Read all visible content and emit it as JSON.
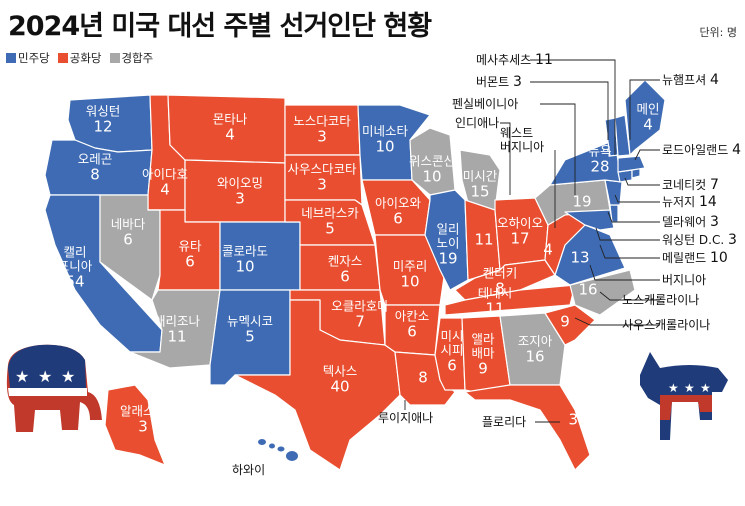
{
  "title": "2024년 미국 대선 주별 선거인단 현황",
  "unit": "단위: 명",
  "legend": [
    {
      "label": "민주당",
      "color": "#3e6bb3"
    },
    {
      "label": "공화당",
      "color": "#e84e2f"
    },
    {
      "label": "경합주",
      "color": "#a8a8a8"
    }
  ],
  "colors": {
    "dem": "#3e6bb3",
    "rep": "#e84e2f",
    "swing": "#a8a8a8"
  },
  "states": [
    {
      "id": "wa",
      "line1": "워싱턴",
      "num": "12",
      "party": "dem"
    },
    {
      "id": "or",
      "line1": "오레곤",
      "num": "8",
      "party": "dem"
    },
    {
      "id": "ca",
      "line1": "캘리",
      "line2": "포니아",
      "num": "54",
      "party": "dem"
    },
    {
      "id": "id",
      "line1": "아이다호",
      "num": "4",
      "party": "rep"
    },
    {
      "id": "nv",
      "line1": "네바다",
      "num": "6",
      "party": "swing"
    },
    {
      "id": "mt",
      "line1": "몬타나",
      "num": "4",
      "party": "rep"
    },
    {
      "id": "wy",
      "line1": "와이오밍",
      "num": "3",
      "party": "rep"
    },
    {
      "id": "ut",
      "line1": "유타",
      "num": "6",
      "party": "rep"
    },
    {
      "id": "az",
      "line1": "애리조나",
      "num": "11",
      "party": "swing"
    },
    {
      "id": "co",
      "line1": "콜로라도",
      "num": "10",
      "party": "dem"
    },
    {
      "id": "nm",
      "line1": "뉴멕시코",
      "num": "5",
      "party": "dem"
    },
    {
      "id": "nd",
      "line1": "노스다코타",
      "num": "3",
      "party": "rep"
    },
    {
      "id": "sd",
      "line1": "사우스다코타",
      "num": "3",
      "party": "rep"
    },
    {
      "id": "ne",
      "line1": "네브라스카",
      "num": "5",
      "party": "rep"
    },
    {
      "id": "ks",
      "line1": "켄자스",
      "num": "6",
      "party": "rep"
    },
    {
      "id": "ok",
      "line1": "오클라호마",
      "num": "7",
      "party": "rep"
    },
    {
      "id": "tx",
      "line1": "텍사스",
      "num": "40",
      "party": "rep"
    },
    {
      "id": "mn",
      "line1": "미네소타",
      "num": "10",
      "party": "dem"
    },
    {
      "id": "ia",
      "line1": "아이오와",
      "num": "6",
      "party": "rep"
    },
    {
      "id": "mo",
      "line1": "미주리",
      "num": "10",
      "party": "rep"
    },
    {
      "id": "ar",
      "line1": "아칸소",
      "num": "6",
      "party": "rep"
    },
    {
      "id": "la",
      "line1": "",
      "num": "8",
      "party": "rep"
    },
    {
      "id": "wi",
      "line1": "위스콘신",
      "num": "10",
      "party": "swing"
    },
    {
      "id": "il",
      "line1": "일리",
      "line2": "노이",
      "num": "19",
      "party": "dem"
    },
    {
      "id": "mi",
      "line1": "미시간",
      "num": "15",
      "party": "swing"
    },
    {
      "id": "in",
      "line1": "",
      "num": "11",
      "party": "rep"
    },
    {
      "id": "oh",
      "line1": "오하이오",
      "num": "17",
      "party": "rep"
    },
    {
      "id": "ky",
      "line1": "켄터키",
      "num": "8",
      "party": "rep"
    },
    {
      "id": "tn",
      "line1": "테네시",
      "num": "11",
      "party": "rep"
    },
    {
      "id": "ms",
      "line1": "미시",
      "line2": "시피",
      "num": "6",
      "party": "rep"
    },
    {
      "id": "al",
      "line1": "앨라",
      "line2": "배마",
      "num": "9",
      "party": "rep"
    },
    {
      "id": "ga",
      "line1": "조지아",
      "num": "16",
      "party": "swing"
    },
    {
      "id": "fl",
      "line1": "",
      "num": "30",
      "party": "rep"
    },
    {
      "id": "sc",
      "line1": "",
      "num": "9",
      "party": "rep"
    },
    {
      "id": "nc",
      "line1": "",
      "num": "16",
      "party": "swing"
    },
    {
      "id": "va",
      "line1": "",
      "num": "13",
      "party": "dem"
    },
    {
      "id": "wv",
      "line1": "",
      "num": "4",
      "party": "rep"
    },
    {
      "id": "pa",
      "line1": "",
      "num": "19",
      "party": "swing"
    },
    {
      "id": "ny",
      "line1": "뉴욕",
      "num": "28",
      "party": "dem"
    },
    {
      "id": "me",
      "line1": "메인",
      "num": "4",
      "party": "dem"
    },
    {
      "id": "ak",
      "line1": "알래스카",
      "num": "3",
      "party": "rep"
    }
  ],
  "callouts": [
    {
      "id": "ma",
      "text": "메사추세츠",
      "num": "11"
    },
    {
      "id": "vt",
      "text": "버몬트",
      "num": "3"
    },
    {
      "id": "pa",
      "text": "펜실베이니아",
      "num": ""
    },
    {
      "id": "in",
      "text": "인디애나",
      "num": ""
    },
    {
      "id": "wv",
      "text": "웨스트",
      "text2": "버지니아",
      "num": ""
    },
    {
      "id": "nh",
      "text": "뉴햄프셔",
      "num": "4"
    },
    {
      "id": "ri",
      "text": "로드아일랜드",
      "num": "4"
    },
    {
      "id": "ct",
      "text": "코네티컷",
      "num": "7"
    },
    {
      "id": "nj",
      "text": "뉴저지",
      "num": "14"
    },
    {
      "id": "de",
      "text": "델라웨어",
      "num": "3"
    },
    {
      "id": "dc",
      "text": "워싱턴 D.C.",
      "num": "3"
    },
    {
      "id": "md",
      "text": "메릴랜드",
      "num": "10"
    },
    {
      "id": "va",
      "text": "버지니아",
      "num": ""
    },
    {
      "id": "nc",
      "text": "노스캐롤라이나",
      "num": ""
    },
    {
      "id": "sc",
      "text": "사우스캐롤라이나",
      "num": ""
    },
    {
      "id": "la",
      "text": "루이지애나",
      "num": ""
    },
    {
      "id": "fl",
      "text": "플로리다",
      "num": ""
    },
    {
      "id": "hi",
      "text": "하와이",
      "num": ""
    }
  ]
}
